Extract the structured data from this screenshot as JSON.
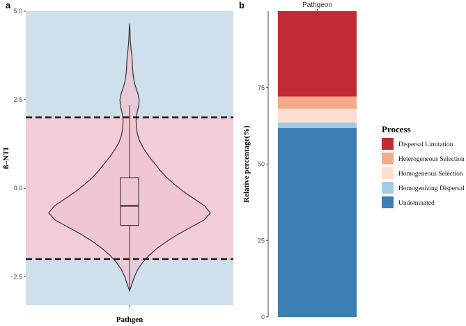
{
  "panel_labels": {
    "a": "a",
    "b": "b"
  },
  "colors": {
    "panel_bg_blue": "#cde0ec",
    "panel_band_pink": "#f2cdd7",
    "violin_fill": "#efc4cf",
    "violin_stroke": "#333333",
    "dashed_line": "#1a1a1a"
  },
  "chart_data": [
    {
      "type": "violin",
      "title": "",
      "xlabel": "Pathgen",
      "ylabel": "ß–NTI",
      "categories": [
        "Pathgen"
      ],
      "ylim": [
        -3.3,
        5.0
      ],
      "yticks": [
        -2.5,
        0.0,
        2.5,
        5.0
      ],
      "ytick_labels": [
        "−2.5",
        "0.0",
        "2.5",
        "5.0"
      ],
      "thresholds": [
        2,
        -2
      ],
      "threshold_style": "dashed",
      "band_range": [
        -2,
        2
      ],
      "violin": {
        "min": -2.9,
        "max": 4.65,
        "profile": [
          [
            -2.9,
            0.0
          ],
          [
            -2.7,
            0.03
          ],
          [
            -2.5,
            0.06
          ],
          [
            -2.3,
            0.1
          ],
          [
            -2.1,
            0.16
          ],
          [
            -1.9,
            0.24
          ],
          [
            -1.7,
            0.34
          ],
          [
            -1.5,
            0.46
          ],
          [
            -1.3,
            0.6
          ],
          [
            -1.1,
            0.76
          ],
          [
            -0.9,
            0.92
          ],
          [
            -0.7,
            1.0
          ],
          [
            -0.5,
            0.93
          ],
          [
            -0.3,
            0.8
          ],
          [
            -0.1,
            0.67
          ],
          [
            0.1,
            0.56
          ],
          [
            0.3,
            0.46
          ],
          [
            0.5,
            0.38
          ],
          [
            0.7,
            0.31
          ],
          [
            0.9,
            0.24
          ],
          [
            1.1,
            0.18
          ],
          [
            1.3,
            0.13
          ],
          [
            1.5,
            0.1
          ],
          [
            1.7,
            0.085
          ],
          [
            1.9,
            0.08
          ],
          [
            2.1,
            0.09
          ],
          [
            2.3,
            0.11
          ],
          [
            2.5,
            0.12
          ],
          [
            2.7,
            0.1
          ],
          [
            2.9,
            0.07
          ],
          [
            3.1,
            0.05
          ],
          [
            3.3,
            0.04
          ],
          [
            3.5,
            0.035
          ],
          [
            3.7,
            0.03
          ],
          [
            3.9,
            0.02
          ],
          [
            4.1,
            0.012
          ],
          [
            4.3,
            0.007
          ],
          [
            4.5,
            0.004
          ],
          [
            4.65,
            0.0
          ]
        ]
      },
      "boxplot": {
        "q1": -1.05,
        "median": -0.5,
        "q3": 0.3,
        "whisker_low": -2.9,
        "whisker_high": 2.35
      }
    },
    {
      "type": "bar",
      "stacked": true,
      "title": "Pathgeon",
      "xlabel": "",
      "ylabel": "Relative percentage(%)",
      "categories": [
        "Pathgeon"
      ],
      "ylim": [
        0,
        100
      ],
      "yticks": [
        0,
        25,
        50,
        75
      ],
      "legend_title": "Process",
      "legend_position": "right",
      "series": [
        {
          "name": "Undominated",
          "values": [
            61.8
          ],
          "color": "#3c7fb4"
        },
        {
          "name": "Homogenizing Dispersal",
          "values": [
            1.8
          ],
          "color": "#a6cce1"
        },
        {
          "name": "Homogeneous Selection",
          "values": [
            4.5
          ],
          "color": "#fcdfd1"
        },
        {
          "name": "Heterogeneous Selection",
          "values": [
            4.0
          ],
          "color": "#f5aa8c"
        },
        {
          "name": "Dispersal Limitation",
          "values": [
            27.9
          ],
          "color": "#c32a37"
        }
      ],
      "legend_order": [
        "Dispersal Limitation",
        "Heterogeneous Selection",
        "Homogeneous Selection",
        "Homogenizing Dispersal",
        "Undominated"
      ]
    }
  ]
}
